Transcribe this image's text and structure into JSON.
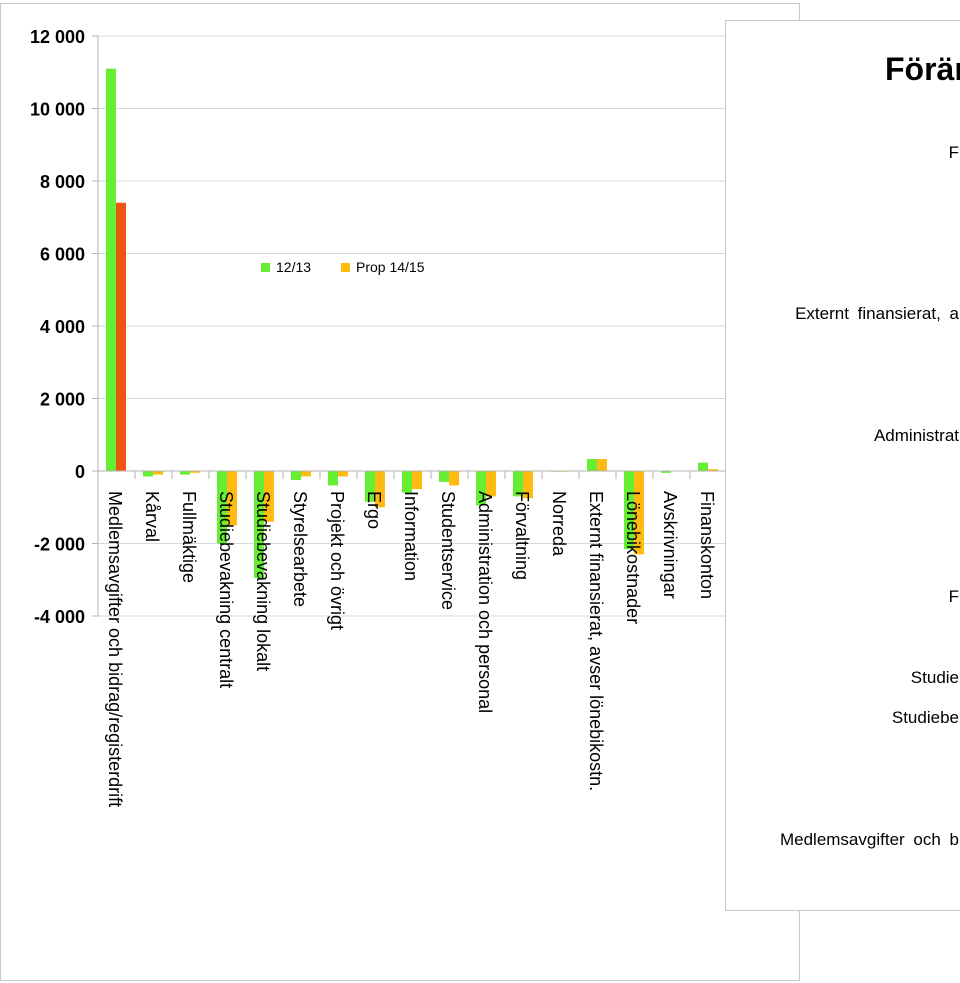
{
  "chart_data": {
    "type": "bar",
    "categories": [
      "Medlemsavgifter och bidrag/registerdrift",
      "Kårval",
      "Fullmäktige",
      "Studiebevakning centralt",
      "Studiebevakning lokalt",
      "Styrelsearbete",
      "Projekt och övrigt",
      "Ergo",
      "Information",
      "Studentservice",
      "Administration och personal",
      "Förvaltning",
      "Norreda",
      "Externt finansierat, avser lönebikostn.",
      "Lönebikostnader",
      "Avskrivningar",
      "Finanskonton"
    ],
    "series": [
      {
        "name": "12/13",
        "color": "#66ee33",
        "values": [
          11100,
          -150,
          -100,
          -2000,
          -2950,
          -250,
          -400,
          -850,
          -600,
          -300,
          -950,
          -700,
          -20,
          330,
          -2150,
          -50,
          230
        ]
      },
      {
        "name": "Prop 14/15",
        "color": "#ffbb11",
        "values": [
          7400,
          -100,
          -50,
          -1500,
          -1400,
          -150,
          -150,
          -1000,
          -500,
          -400,
          -700,
          -750,
          -20,
          330,
          -2300,
          0,
          50
        ]
      }
    ],
    "highlight": {
      "series": 1,
      "index": 0,
      "color": "#ee5511"
    },
    "ylim": [
      -4000,
      12000
    ],
    "yticks": [
      "12 000",
      "10 000",
      "8 000",
      "6 000",
      "4 000",
      "2 000",
      "0",
      "-2 000",
      "-4 000"
    ],
    "grid": true,
    "legend_position": "inside-center"
  },
  "side_panel": {
    "title": "Förän",
    "labels": [
      {
        "text": "F"
      },
      {
        "text": "Externt finansierat, a"
      },
      {
        "text": "Administrat"
      },
      {
        "text": "F"
      },
      {
        "text": "Studie"
      },
      {
        "text": "Studiebe"
      },
      {
        "text": "Medlemsavgifter och b"
      }
    ]
  }
}
